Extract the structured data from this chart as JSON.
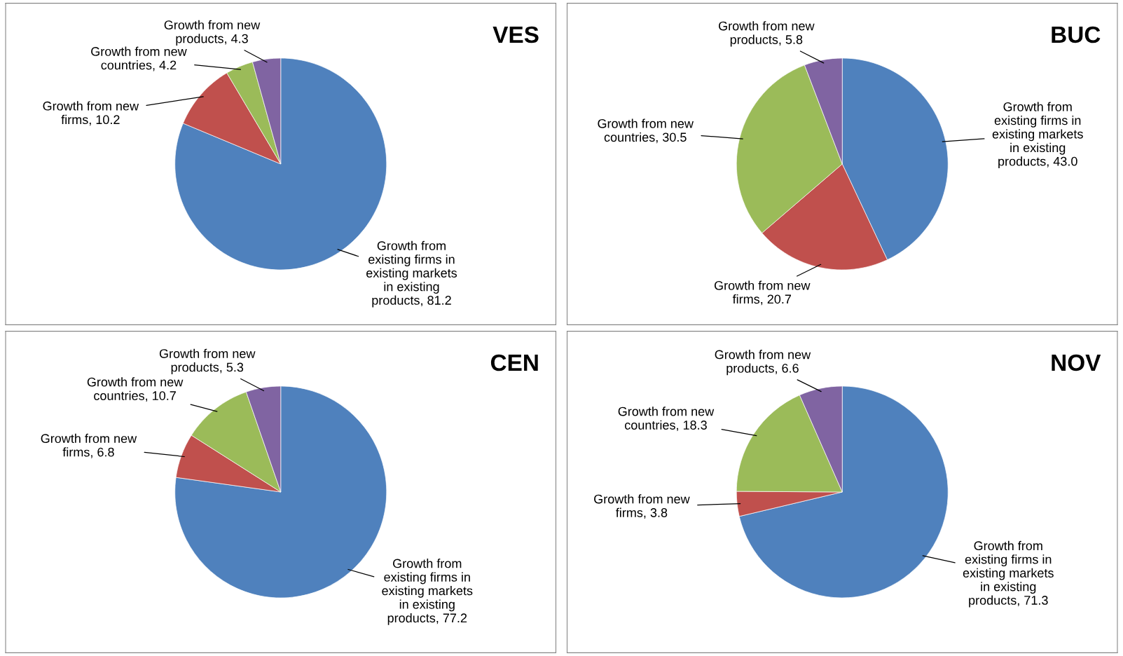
{
  "chart_data": [
    {
      "type": "pie",
      "title": "VES",
      "categories": [
        "Growth from existing firms in existing markets in existing products",
        "Growth from new firms",
        "Growth from new countries",
        "Growth from new products"
      ],
      "values": [
        81.2,
        10.2,
        4.2,
        4.3
      ],
      "value_labels": [
        ", 81.2",
        ", 10.2",
        ", 4.2",
        ", 4.3"
      ],
      "colors": [
        "#4f81bd",
        "#c0504d",
        "#9bbb59",
        "#8064a2"
      ]
    },
    {
      "type": "pie",
      "title": "BUC",
      "categories": [
        "Growth from existing firms in existing markets in existing products",
        "Growth from new firms",
        "Growth from new countries",
        "Growth from new products"
      ],
      "values": [
        43.0,
        20.7,
        30.5,
        5.8
      ],
      "value_labels": [
        ", 43.0",
        ", 20.7",
        ", 30.5",
        ", 5.8"
      ],
      "colors": [
        "#4f81bd",
        "#c0504d",
        "#9bbb59",
        "#8064a2"
      ]
    },
    {
      "type": "pie",
      "title": "CEN",
      "categories": [
        "Growth from existing firms in existing markets in existing products",
        "Growth from new firms",
        "Growth from new countries",
        "Growth from new products"
      ],
      "values": [
        77.2,
        6.8,
        10.7,
        5.3
      ],
      "value_labels": [
        ", 77.2",
        ", 6.8",
        ", 10.7",
        ", 5.3"
      ],
      "colors": [
        "#4f81bd",
        "#c0504d",
        "#9bbb59",
        "#8064a2"
      ]
    },
    {
      "type": "pie",
      "title": "NOV",
      "categories": [
        "Growth from existing firms in existing markets in existing products",
        "Growth from new firms",
        "Growth from new countries",
        "Growth from new products"
      ],
      "values": [
        71.3,
        3.8,
        18.3,
        6.6
      ],
      "value_labels": [
        ", 71.3",
        ", 3.8",
        ", 18.3",
        ", 6.6"
      ],
      "colors": [
        "#4f81bd",
        "#c0504d",
        "#9bbb59",
        "#8064a2"
      ]
    }
  ]
}
